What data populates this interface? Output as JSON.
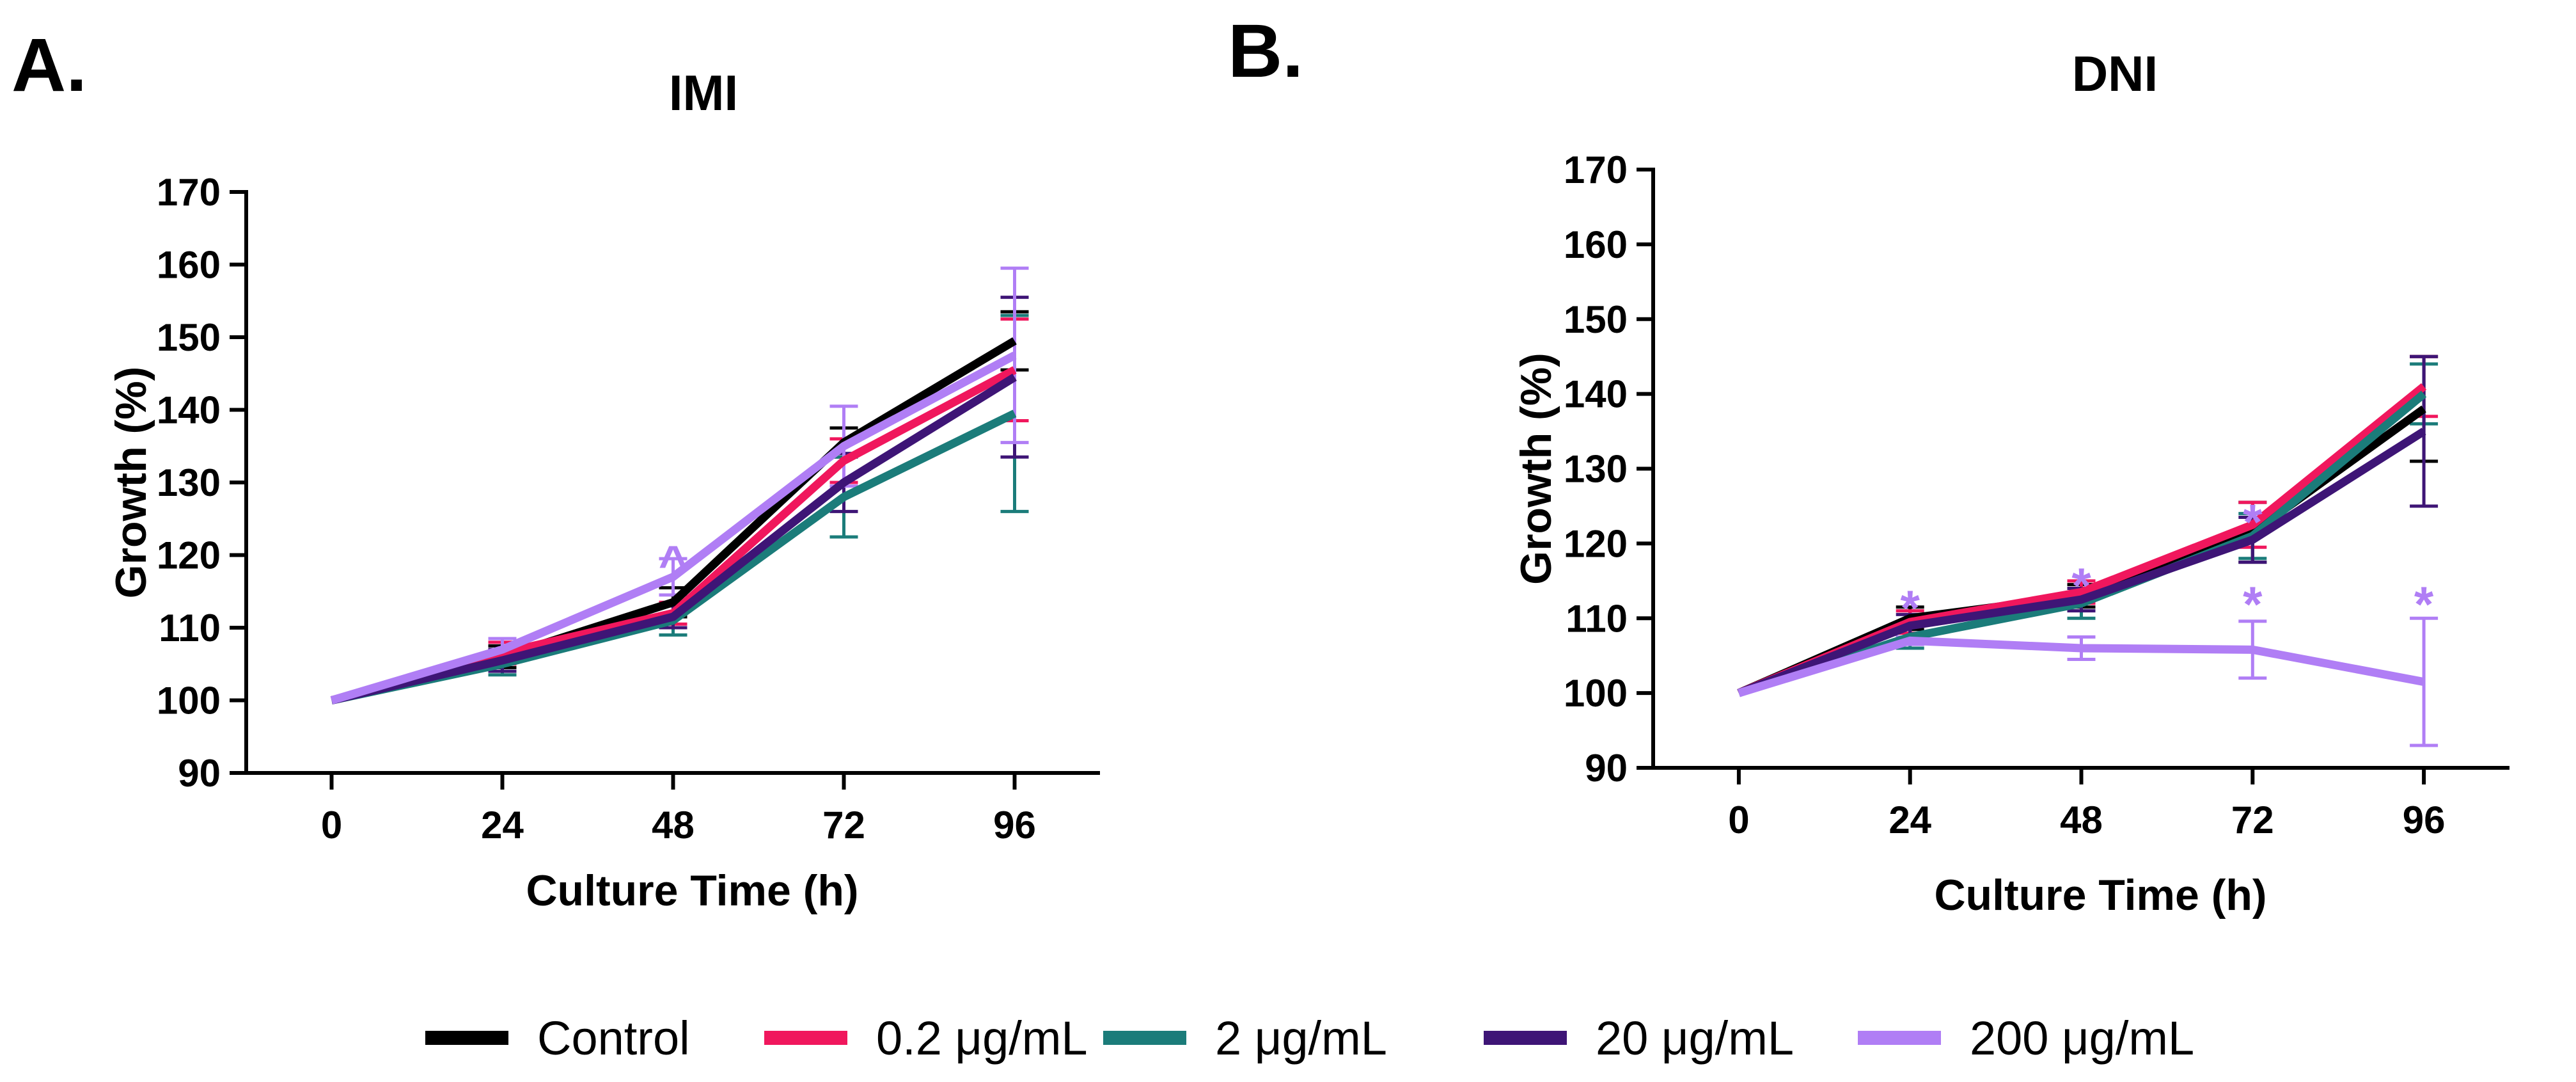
{
  "colors": {
    "control": "#000000",
    "c0_2": "#f0175d",
    "c2": "#1b7c7a",
    "c20": "#3e1576",
    "c200": "#b07ef5"
  },
  "legend": {
    "items": [
      {
        "key": "control",
        "label": "Control"
      },
      {
        "key": "c0_2",
        "label": "0.2 μg/mL"
      },
      {
        "key": "c2",
        "label": "2 μg/mL"
      },
      {
        "key": "c20",
        "label": "20 μg/mL"
      },
      {
        "key": "c200",
        "label": "200 μg/mL"
      }
    ]
  },
  "chart_data": [
    {
      "type": "line",
      "panel_label": "A.",
      "title": "IMI",
      "xlabel": "Culture Time (h)",
      "ylabel": "Growth (%)",
      "x": [
        0,
        24,
        48,
        72,
        96
      ],
      "xlim": [
        -12,
        108
      ],
      "ylim": [
        90,
        170
      ],
      "yticks": [
        90,
        100,
        110,
        120,
        130,
        140,
        150,
        160,
        170
      ],
      "series": [
        {
          "key": "control",
          "name": "Control",
          "values": [
            100,
            106,
            113.5,
            135.5,
            149.5
          ],
          "errors": [
            0,
            1.5,
            2,
            2,
            4
          ]
        },
        {
          "key": "c0_2",
          "name": "0.2 μg/mL",
          "values": [
            100,
            106.5,
            112,
            133,
            145.5
          ],
          "errors": [
            0,
            1.5,
            1.5,
            3,
            7
          ]
        },
        {
          "key": "c2",
          "name": "2 μg/mL",
          "values": [
            100,
            105,
            111,
            128,
            139.5
          ],
          "errors": [
            0,
            1.5,
            2,
            5.5,
            13.5
          ]
        },
        {
          "key": "c20",
          "name": "20 μg/mL",
          "values": [
            100,
            105.5,
            111.5,
            130,
            144.5
          ],
          "errors": [
            0,
            1.5,
            1.5,
            4,
            11
          ]
        },
        {
          "key": "c200",
          "name": "200 μg/mL",
          "values": [
            100,
            107,
            117,
            135,
            147.5
          ],
          "errors": [
            0,
            1.5,
            2.5,
            5.5,
            12
          ]
        }
      ],
      "annotations": [
        {
          "text": "^",
          "x": 48,
          "y": 119.5,
          "series": "c200"
        }
      ]
    },
    {
      "type": "line",
      "panel_label": "B.",
      "title": "DNI",
      "xlabel": "Culture  Time (h)",
      "ylabel": "Growth (%)",
      "x": [
        0,
        24,
        48,
        72,
        96
      ],
      "xlim": [
        -12,
        108
      ],
      "ylim": [
        90,
        170
      ],
      "yticks": [
        90,
        100,
        110,
        120,
        130,
        140,
        150,
        160,
        170
      ],
      "series": [
        {
          "key": "control",
          "name": "Control",
          "values": [
            100,
            110,
            113,
            121.5,
            138
          ],
          "errors": [
            0,
            1.5,
            1.5,
            4,
            7
          ]
        },
        {
          "key": "c0_2",
          "name": "0.2 μg/mL",
          "values": [
            100,
            109.5,
            113.5,
            122.5,
            141
          ],
          "errors": [
            0,
            1.5,
            1.5,
            3,
            4
          ]
        },
        {
          "key": "c2",
          "name": "2 μg/mL",
          "values": [
            100,
            107.5,
            112,
            121,
            140
          ],
          "errors": [
            0,
            1.5,
            2,
            3,
            4
          ]
        },
        {
          "key": "c20",
          "name": "20 μg/mL",
          "values": [
            100,
            109,
            112.5,
            120.5,
            135
          ],
          "errors": [
            0,
            1.5,
            1.5,
            3,
            10
          ]
        },
        {
          "key": "c200",
          "name": "200 μg/mL",
          "values": [
            100,
            107,
            106,
            105.8,
            101.5
          ],
          "errors": [
            0,
            0.5,
            1.5,
            3.8,
            8.5
          ]
        }
      ],
      "annotations": [
        {
          "text": "*",
          "x": 24,
          "y": 112,
          "series": "c200"
        },
        {
          "text": "*",
          "x": 48,
          "y": 115,
          "series": "c200"
        },
        {
          "text": "*",
          "x": 72,
          "y": 123.5,
          "series": "c200"
        },
        {
          "text": "*",
          "x": 72,
          "y": 112.5,
          "series": "c200"
        },
        {
          "text": "*",
          "x": 96,
          "y": 112.5,
          "series": "c200"
        }
      ]
    }
  ]
}
